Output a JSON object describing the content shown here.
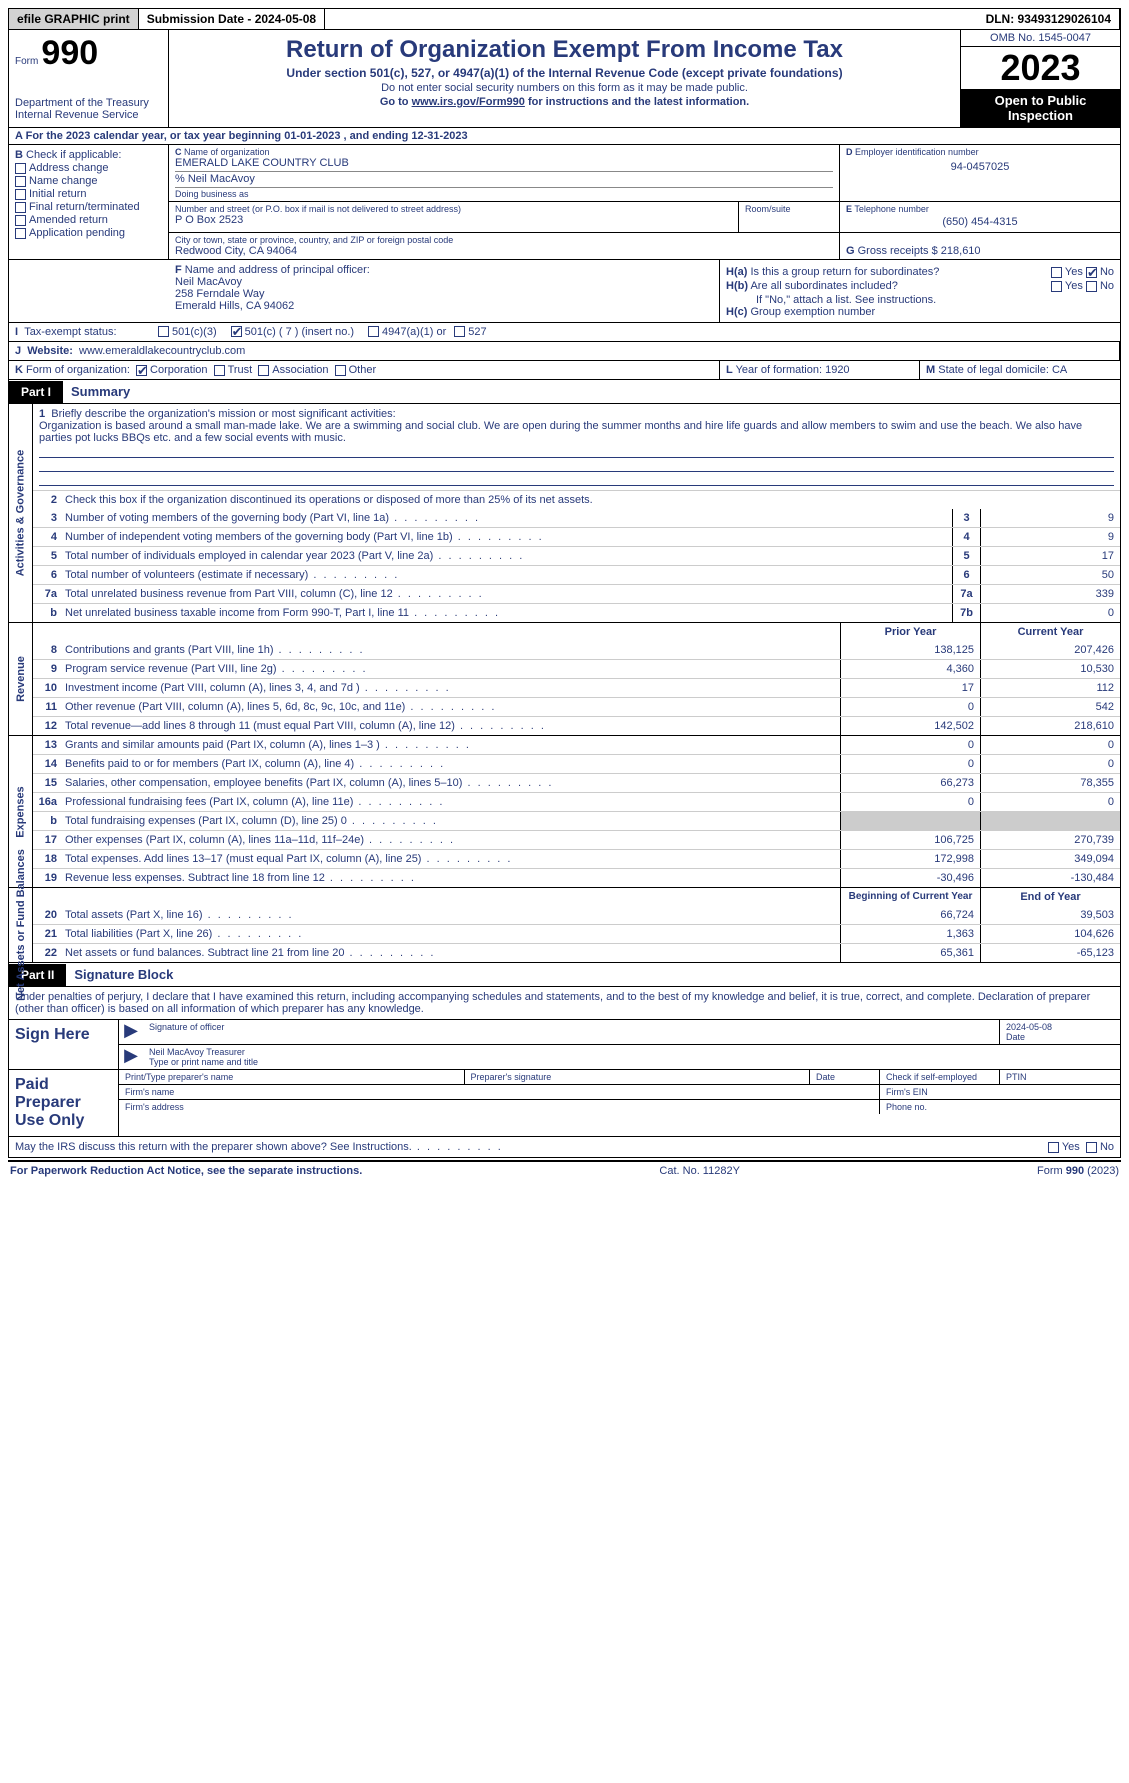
{
  "topbar": {
    "efile": "efile GRAPHIC print",
    "submission": "Submission Date - 2024-05-08",
    "dln": "DLN: 93493129026104"
  },
  "header": {
    "form_word": "Form",
    "form_num": "990",
    "dept": "Department of the Treasury\nInternal Revenue Service",
    "title": "Return of Organization Exempt From Income Tax",
    "sub": "Under section 501(c), 527, or 4947(a)(1) of the Internal Revenue Code (except private foundations)",
    "note1": "Do not enter social security numbers on this form as it may be made public.",
    "note2_pre": "Go to ",
    "note2_link": "www.irs.gov/Form990",
    "note2_post": " for instructions and the latest information.",
    "omb": "OMB No. 1545-0047",
    "year": "2023",
    "inspect": "Open to Public Inspection"
  },
  "A": "For the 2023 calendar year, or tax year beginning 01-01-2023   , and ending 12-31-2023",
  "B": {
    "label": "Check if applicable:",
    "opts": [
      "Address change",
      "Name change",
      "Initial return",
      "Final return/terminated",
      "Amended return",
      "Application pending"
    ]
  },
  "C": {
    "label": "Name of organization",
    "name": "EMERALD LAKE COUNTRY CLUB",
    "care_of": "% Neil MacAvoy",
    "dba_label": "Doing business as",
    "street_label": "Number and street (or P.O. box if mail is not delivered to street address)",
    "room_label": "Room/suite",
    "street": "P O Box 2523",
    "city_label": "City or town, state or province, country, and ZIP or foreign postal code",
    "city": "Redwood City, CA  94064"
  },
  "D": {
    "label": "Employer identification number",
    "val": "94-0457025"
  },
  "E": {
    "label": "Telephone number",
    "val": "(650) 454-4315"
  },
  "G": {
    "label": "Gross receipts $",
    "val": "218,610"
  },
  "F": {
    "label": "Name and address of principal officer:",
    "name": "Neil MacAvoy",
    "addr1": "258 Ferndale Way",
    "addr2": "Emerald Hills, CA  94062"
  },
  "H": {
    "a": "Is this a group return for subordinates?",
    "a_yes": "Yes",
    "a_no": "No",
    "b": "Are all subordinates included?",
    "b_note": "If \"No,\" attach a list. See instructions.",
    "c": "Group exemption number"
  },
  "I": {
    "label": "Tax-exempt status:",
    "o1": "501(c)(3)",
    "o2": "501(c) ( 7 ) (insert no.)",
    "o3": "4947(a)(1) or",
    "o4": "527"
  },
  "J": {
    "label": "Website:",
    "val": "www.emeraldlakecountryclub.com"
  },
  "K": {
    "label": "Form of organization:",
    "opts": [
      "Corporation",
      "Trust",
      "Association",
      "Other"
    ]
  },
  "L": {
    "label": "Year of formation:",
    "val": "1920"
  },
  "M": {
    "label": "State of legal domicile:",
    "val": "CA"
  },
  "part1": {
    "label": "Part I",
    "title": "Summary"
  },
  "summary": {
    "l1_label": "Briefly describe the organization's mission or most significant activities:",
    "l1_text": "Organization is based around a small man-made lake. We are a swimming and social club. We are open during the summer months and hire life guards and allow members to swim and use the beach. We also have parties pot lucks BBQs etc. and a few social events with music.",
    "l2": "Check this box     if the organization discontinued its operations or disposed of more than 25% of its net assets.",
    "rows_gov": [
      {
        "n": "3",
        "t": "Number of voting members of the governing body (Part VI, line 1a)",
        "box": "3",
        "v": "9"
      },
      {
        "n": "4",
        "t": "Number of independent voting members of the governing body (Part VI, line 1b)",
        "box": "4",
        "v": "9"
      },
      {
        "n": "5",
        "t": "Total number of individuals employed in calendar year 2023 (Part V, line 2a)",
        "box": "5",
        "v": "17"
      },
      {
        "n": "6",
        "t": "Total number of volunteers (estimate if necessary)",
        "box": "6",
        "v": "50"
      },
      {
        "n": "7a",
        "t": "Total unrelated business revenue from Part VIII, column (C), line 12",
        "box": "7a",
        "v": "339"
      },
      {
        "n": "b",
        "t": "Net unrelated business taxable income from Form 990-T, Part I, line 11",
        "box": "7b",
        "v": "0"
      }
    ],
    "col_head1": "Prior Year",
    "col_head2": "Current Year",
    "rows_rev": [
      {
        "n": "8",
        "t": "Contributions and grants (Part VIII, line 1h)",
        "p": "138,125",
        "c": "207,426"
      },
      {
        "n": "9",
        "t": "Program service revenue (Part VIII, line 2g)",
        "p": "4,360",
        "c": "10,530"
      },
      {
        "n": "10",
        "t": "Investment income (Part VIII, column (A), lines 3, 4, and 7d )",
        "p": "17",
        "c": "112"
      },
      {
        "n": "11",
        "t": "Other revenue (Part VIII, column (A), lines 5, 6d, 8c, 9c, 10c, and 11e)",
        "p": "0",
        "c": "542"
      },
      {
        "n": "12",
        "t": "Total revenue—add lines 8 through 11 (must equal Part VIII, column (A), line 12)",
        "p": "142,502",
        "c": "218,610"
      }
    ],
    "rows_exp": [
      {
        "n": "13",
        "t": "Grants and similar amounts paid (Part IX, column (A), lines 1–3 )",
        "p": "0",
        "c": "0"
      },
      {
        "n": "14",
        "t": "Benefits paid to or for members (Part IX, column (A), line 4)",
        "p": "0",
        "c": "0"
      },
      {
        "n": "15",
        "t": "Salaries, other compensation, employee benefits (Part IX, column (A), lines 5–10)",
        "p": "66,273",
        "c": "78,355"
      },
      {
        "n": "16a",
        "t": "Professional fundraising fees (Part IX, column (A), line 11e)",
        "p": "0",
        "c": "0"
      },
      {
        "n": "b",
        "t": "Total fundraising expenses (Part IX, column (D), line 25) 0",
        "p": "grey",
        "c": "grey"
      },
      {
        "n": "17",
        "t": "Other expenses (Part IX, column (A), lines 11a–11d, 11f–24e)",
        "p": "106,725",
        "c": "270,739"
      },
      {
        "n": "18",
        "t": "Total expenses. Add lines 13–17 (must equal Part IX, column (A), line 25)",
        "p": "172,998",
        "c": "349,094"
      },
      {
        "n": "19",
        "t": "Revenue less expenses. Subtract line 18 from line 12",
        "p": "-30,496",
        "c": "-130,484"
      }
    ],
    "col_head3": "Beginning of Current Year",
    "col_head4": "End of Year",
    "rows_net": [
      {
        "n": "20",
        "t": "Total assets (Part X, line 16)",
        "p": "66,724",
        "c": "39,503"
      },
      {
        "n": "21",
        "t": "Total liabilities (Part X, line 26)",
        "p": "1,363",
        "c": "104,626"
      },
      {
        "n": "22",
        "t": "Net assets or fund balances. Subtract line 21 from line 20",
        "p": "65,361",
        "c": "-65,123"
      }
    ],
    "side_gov": "Activities & Governance",
    "side_rev": "Revenue",
    "side_exp": "Expenses",
    "side_net": "Net Assets or Fund Balances"
  },
  "part2": {
    "label": "Part II",
    "title": "Signature Block"
  },
  "sig": {
    "intro": "Under penalties of perjury, I declare that I have examined this return, including accompanying schedules and statements, and to the best of my knowledge and belief, it is true, correct, and complete. Declaration of preparer (other than officer) is based on all information of which preparer has any knowledge.",
    "sign_here": "Sign Here",
    "officer_sig": "Signature of officer",
    "officer_name": "Neil MacAvoy  Treasurer",
    "officer_type": "Type or print name and title",
    "date_label": "Date",
    "date_val": "2024-05-08",
    "paid": "Paid Preparer Use Only",
    "prep_name": "Print/Type preparer's name",
    "prep_sig": "Preparer's signature",
    "check_self": "Check      if self-employed",
    "ptin": "PTIN",
    "firm_name": "Firm's name",
    "firm_ein": "Firm's EIN",
    "firm_addr": "Firm's address",
    "phone": "Phone no."
  },
  "footer": {
    "discuss": "May the IRS discuss this return with the preparer shown above? See Instructions.",
    "yes": "Yes",
    "no": "No",
    "paperwork": "For Paperwork Reduction Act Notice, see the separate instructions.",
    "cat": "Cat. No. 11282Y",
    "form": "Form 990 (2023)"
  }
}
